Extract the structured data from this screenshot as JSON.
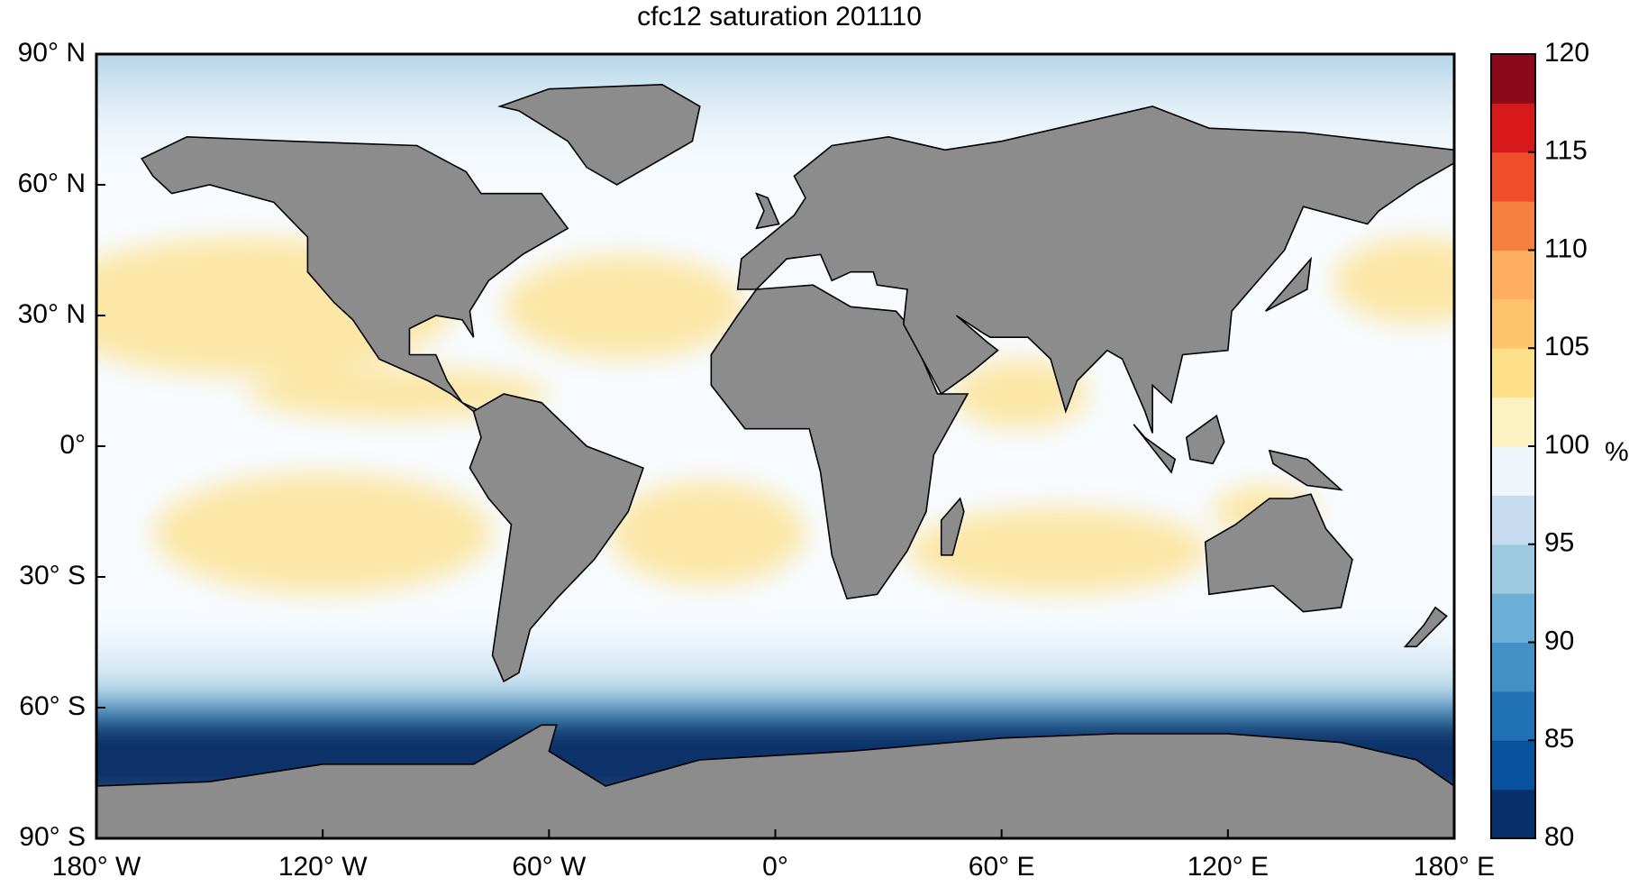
{
  "chart_data": {
    "type": "map",
    "title": "cfc12 saturation 201110",
    "xlim": [
      -180,
      180
    ],
    "ylim": [
      -90,
      90
    ],
    "xticks": [
      {
        "value": -180,
        "label": "180° W"
      },
      {
        "value": -120,
        "label": "120° W"
      },
      {
        "value": -60,
        "label": "60° W"
      },
      {
        "value": 0,
        "label": "0°"
      },
      {
        "value": 60,
        "label": "60° E"
      },
      {
        "value": 120,
        "label": "120° E"
      },
      {
        "value": 180,
        "label": "180° E"
      }
    ],
    "yticks": [
      {
        "value": 90,
        "label": "90° N"
      },
      {
        "value": 60,
        "label": "60° N"
      },
      {
        "value": 30,
        "label": "30° N"
      },
      {
        "value": 0,
        "label": "0°"
      },
      {
        "value": -30,
        "label": "30° S"
      },
      {
        "value": -60,
        "label": "60° S"
      },
      {
        "value": -90,
        "label": "90° S"
      }
    ],
    "colorbar": {
      "lim": [
        80,
        120
      ],
      "ticks": [
        80,
        85,
        90,
        95,
        100,
        105,
        110,
        115,
        120
      ],
      "label": "%",
      "colors": [
        "#08306b",
        "#08519c",
        "#2171b5",
        "#4292c6",
        "#6baed6",
        "#9ecae1",
        "#c6dbef",
        "#eef5fb",
        "#fff2c2",
        "#fee08b",
        "#fdc56b",
        "#fdae61",
        "#f6803f",
        "#f04d2b",
        "#d7191c",
        "#8b0a1a"
      ]
    },
    "land_color": "#8c8c8c"
  }
}
